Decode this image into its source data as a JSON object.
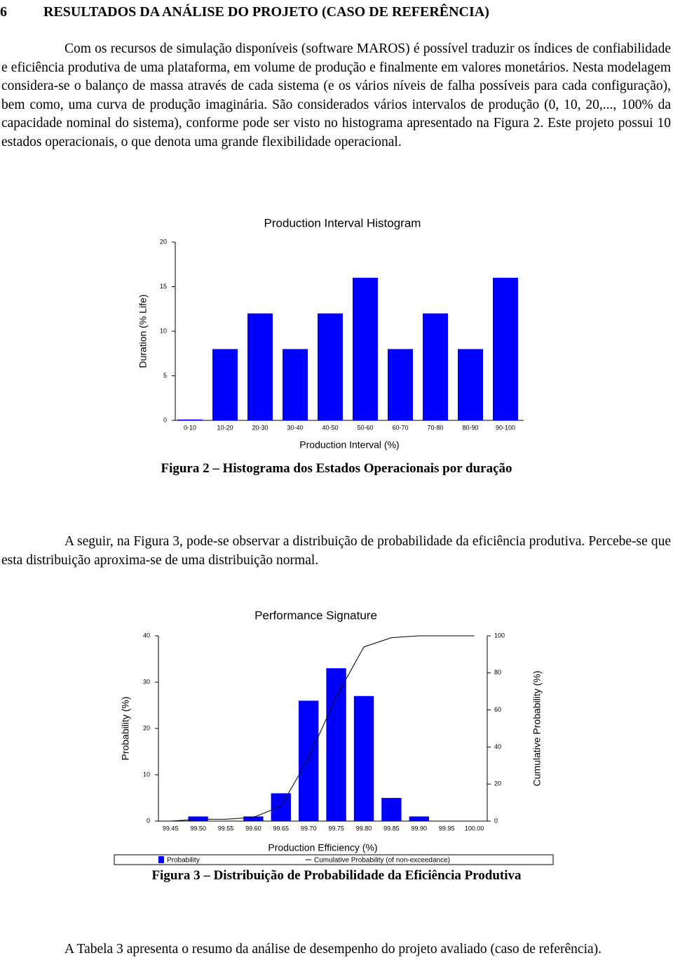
{
  "section": {
    "number": "6",
    "title": "RESULTADOS DA ANÁLISE DO PROJETO (CASO DE REFERÊNCIA)"
  },
  "paragraphs": [
    "Com os recursos de simulação disponíveis (software MAROS) é possível traduzir os índices de confiabilidade e eficiência produtiva de uma plataforma, em volume de produção e finalmente em valores monetários. Nesta modelagem considera-se o balanço de massa através de cada sistema (e os vários níveis de falha possíveis para cada configuração), bem como, uma curva de produção imaginária. São considerados vários intervalos de produção (0, 10, 20,..., 100% da capacidade nominal do sistema), conforme pode ser visto no histograma apresentado na Figura 2. Este projeto possui 10 estados operacionais, o que denota uma grande flexibilidade operacional.",
    "A seguir, na Figura 3, pode-se observar a distribuição de probabilidade da eficiência produtiva. Percebe-se que esta distribuição aproxima-se de uma distribuição normal.",
    "A Tabela 3 apresenta o resumo da análise de desempenho do projeto avaliado (caso de referência)."
  ],
  "figures": [
    {
      "chart": {
        "type": "bar",
        "title": "Production Interval Histogram",
        "y_label": "Duration (% Life)",
        "x_label": "Production Interval (%)",
        "categories": [
          "0-10",
          "10-20",
          "20-30",
          "30-40",
          "40-50",
          "50-60",
          "60-70",
          "70-80",
          "80-90",
          "90-100"
        ],
        "values": [
          0.1,
          8,
          12,
          8,
          12,
          16,
          8,
          12,
          8,
          16
        ],
        "color": "#0000ff",
        "ylim": [
          0,
          20
        ],
        "yticks": [
          0,
          5,
          10,
          15,
          20
        ]
      },
      "caption": "Figura 2 – Histograma dos Estados Operacionais por duração"
    },
    {
      "chart": {
        "type": "bar",
        "title": "Performance Signature",
        "y_label": "Probability (%)",
        "y2_label": "Cumulative Probability (%)",
        "x_label": "Production Efficiency (%)",
        "categories": [
          "99.45",
          "99.50",
          "99.55",
          "99.60",
          "99.65",
          "99.70",
          "99.75",
          "99.80",
          "99.85",
          "99.90",
          "99.95",
          "100.00"
        ],
        "series": [
          {
            "name": "Probability",
            "color": "#0000ff",
            "values": [
              0,
              1,
              0,
              1,
              6,
              26,
              33,
              27,
              5,
              1,
              0,
              0
            ]
          },
          {
            "name": "Cumulative Probability (of non-exceedance)",
            "type": "line",
            "axis": "y2",
            "color": "#000000",
            "values": [
              0,
              1,
              1,
              2,
              8,
              34,
              67,
              94,
              99,
              100,
              100,
              100
            ]
          }
        ],
        "ylim": [
          0,
          40
        ],
        "yticks": [
          0,
          10,
          20,
          30,
          40
        ],
        "y2lim": [
          0,
          100
        ],
        "y2ticks": [
          0,
          20,
          40,
          60,
          80,
          100
        ]
      },
      "caption": "Figura 3 – Distribuição de Probabilidade da Eficiência Produtiva"
    }
  ]
}
